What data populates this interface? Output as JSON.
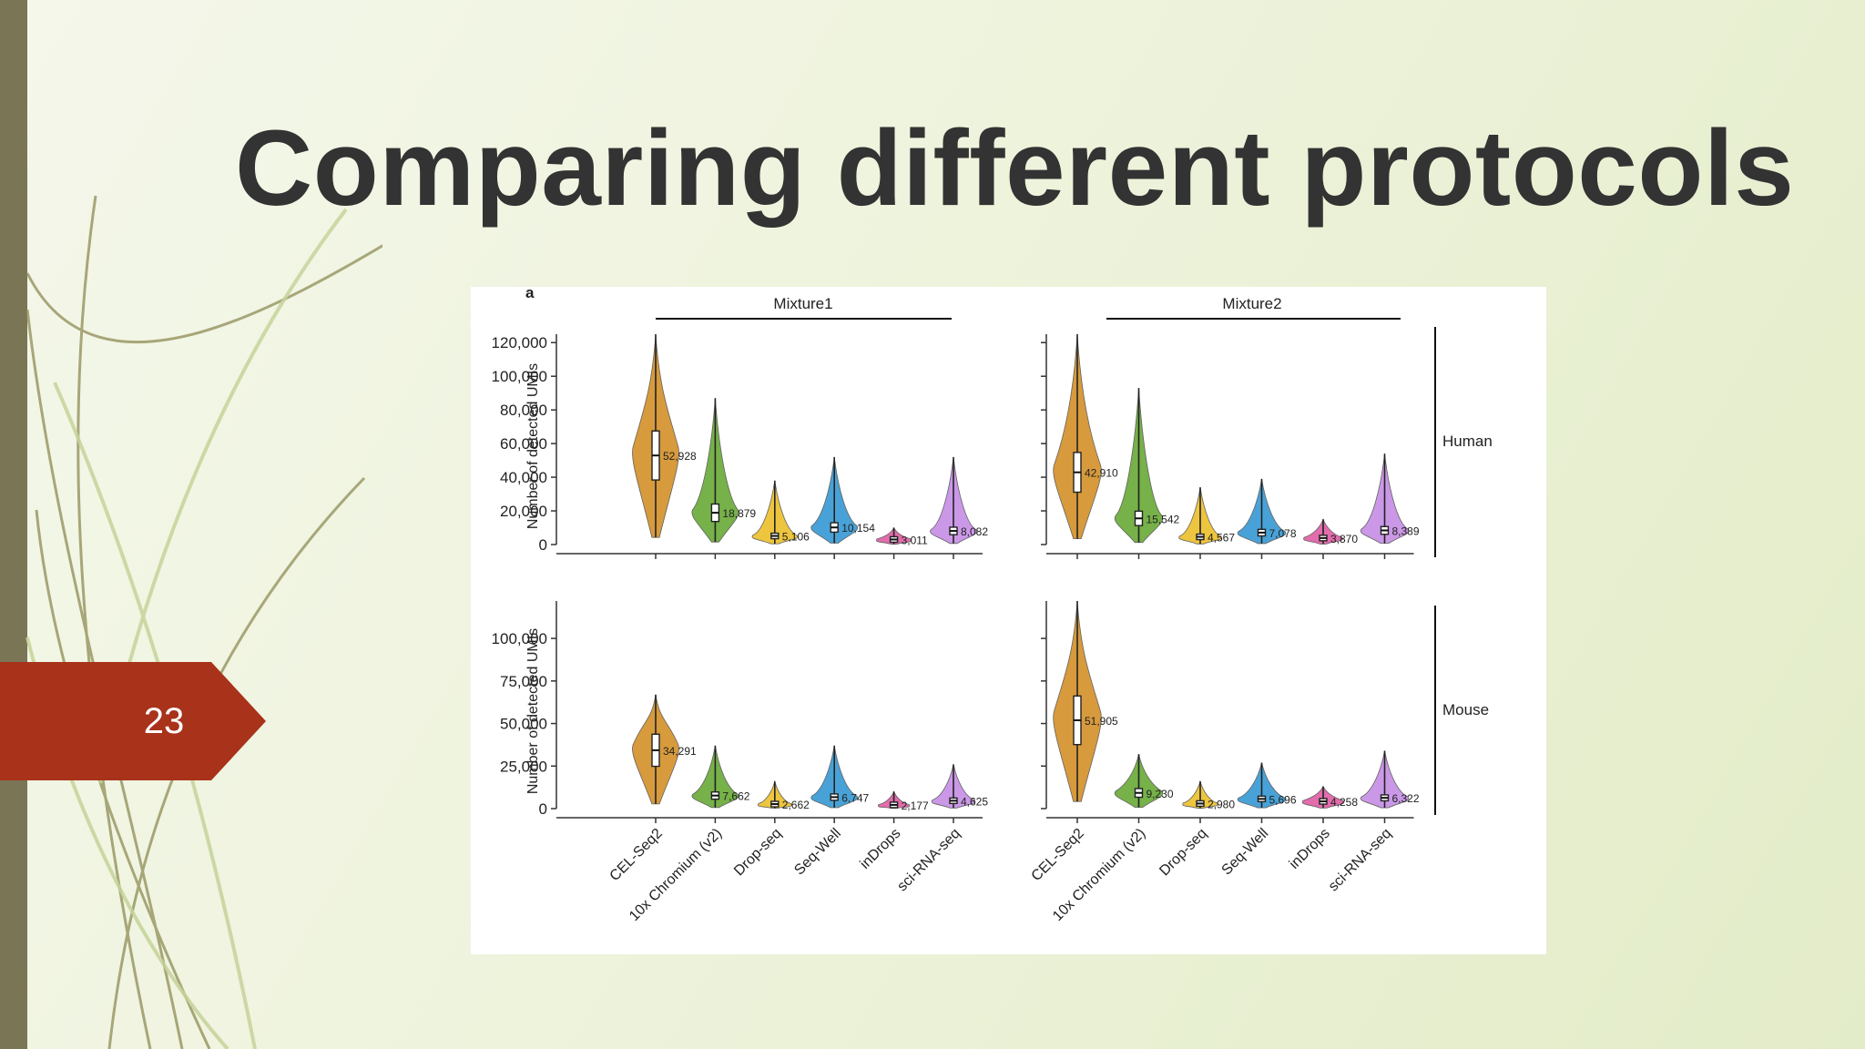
{
  "slide": {
    "title": "Comparing different protocols",
    "number": "23",
    "colors": {
      "accent": "#a8321a",
      "bar": "#7a7555",
      "background": "#eef3dc",
      "title": "#333333"
    }
  },
  "figure": {
    "panel_letter": "a",
    "column_headers": [
      "Mixture1",
      "Mixture2"
    ],
    "row_headers": [
      "Human",
      "Mouse"
    ],
    "ylabel": "Number of detected UMIs"
  },
  "chart_data": [
    {
      "type": "violin",
      "column": "Mixture1",
      "row": "Human",
      "categories": [
        "CEL-Seq2",
        "10x Chromium (v2)",
        "Drop-seq",
        "Seq-Well",
        "inDrops",
        "sci-RNA-seq"
      ],
      "medians": [
        52928,
        18879,
        5106,
        10154,
        3011,
        8082
      ],
      "median_labels": [
        "52,928",
        "18,879",
        "5,106",
        "10,154",
        "3,011",
        "8,082"
      ],
      "maxima": [
        125000,
        87000,
        38000,
        52000,
        10000,
        52000
      ],
      "yticks": [
        "0",
        "20,000",
        "40,000",
        "60,000",
        "80,000",
        "100,000",
        "120,000"
      ],
      "ytick_values": [
        0,
        20000,
        40000,
        60000,
        80000,
        100000,
        120000
      ],
      "ylim": [
        0,
        125000
      ],
      "show_yticklabels": true,
      "show_xticklabels": false
    },
    {
      "type": "violin",
      "column": "Mixture2",
      "row": "Human",
      "categories": [
        "CEL-Seq2",
        "10x Chromium (v2)",
        "Drop-seq",
        "Seq-Well",
        "inDrops",
        "sci-RNA-seq"
      ],
      "medians": [
        42910,
        15542,
        4567,
        7078,
        3870,
        8389
      ],
      "median_labels": [
        "42,910",
        "15,542",
        "4,567",
        "7,078",
        "3,870",
        "8,389"
      ],
      "maxima": [
        125000,
        93000,
        34000,
        39000,
        15000,
        54000
      ],
      "yticks": [],
      "ytick_values": [
        0,
        20000,
        40000,
        60000,
        80000,
        100000,
        120000
      ],
      "ylim": [
        0,
        125000
      ],
      "show_yticklabels": false,
      "show_xticklabels": false
    },
    {
      "type": "violin",
      "column": "Mixture1",
      "row": "Mouse",
      "categories": [
        "CEL-Seq2",
        "10x Chromium (v2)",
        "Drop-seq",
        "Seq-Well",
        "inDrops",
        "sci-RNA-seq"
      ],
      "medians": [
        34291,
        7662,
        2662,
        6747,
        2177,
        4625
      ],
      "median_labels": [
        "34,291",
        "7,662",
        "2,662",
        "6,747",
        "2,177",
        "4,625"
      ],
      "maxima": [
        67000,
        37000,
        16000,
        37000,
        10000,
        26000
      ],
      "yticks": [
        "0",
        "25,000",
        "50,000",
        "75,000",
        "100,000"
      ],
      "ytick_values": [
        0,
        25000,
        50000,
        75000,
        100000
      ],
      "ylim": [
        0,
        122000
      ],
      "show_yticklabels": true,
      "show_xticklabels": true
    },
    {
      "type": "violin",
      "column": "Mixture2",
      "row": "Mouse",
      "categories": [
        "CEL-Seq2",
        "10x Chromium (v2)",
        "Drop-seq",
        "Seq-Well",
        "inDrops",
        "sci-RNA-seq"
      ],
      "medians": [
        51905,
        9230,
        2980,
        5696,
        4258,
        6322
      ],
      "median_labels": [
        "51,905",
        "9,230",
        "2,980",
        "5,696",
        "4,258",
        "6,322"
      ],
      "maxima": [
        122000,
        32000,
        16000,
        27000,
        13000,
        34000
      ],
      "yticks": [],
      "ytick_values": [
        0,
        25000,
        50000,
        75000,
        100000
      ],
      "ylim": [
        0,
        122000
      ],
      "show_yticklabels": false,
      "show_xticklabels": true
    }
  ],
  "protocol_colors": [
    "#d4922c",
    "#6bab3a",
    "#ecc12e",
    "#3a9bd4",
    "#e060a6",
    "#c790e6"
  ]
}
